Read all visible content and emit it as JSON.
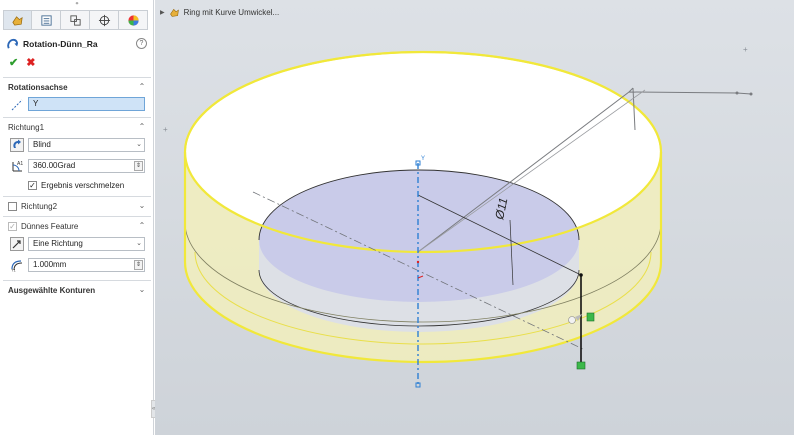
{
  "feature": {
    "title": "Rotation-Dünn_Ra",
    "help": "?"
  },
  "sections": {
    "axis": {
      "title": "Rotationsachse",
      "value": "Y"
    },
    "direction1": {
      "title": "Richtung1",
      "type": "Blind",
      "angle": "360.00Grad",
      "merge_label": "Ergebnis verschmelzen",
      "merge_checked": true
    },
    "direction2": {
      "title": "Richtung2",
      "checked": false
    },
    "thin": {
      "title": "Dünnes Feature",
      "type": "Eine Richtung",
      "thickness": "1.000mm"
    },
    "contours": {
      "title": "Ausgewählte Konturen"
    }
  },
  "viewport": {
    "tree_label": "Ring mit Kurve Umwickel...",
    "axis_label": "Y",
    "dim_label": "Ø11"
  },
  "icons": {
    "tabs": [
      "feature-manager-icon",
      "property-manager-icon",
      "configuration-manager-icon",
      "dimxpert-icon",
      "display-manager-icon"
    ],
    "colors": {
      "highlight": "#f5ec3c",
      "axis": "#2d7fd3",
      "accept": "#2f9e2f",
      "cancel": "#dd2222"
    }
  }
}
